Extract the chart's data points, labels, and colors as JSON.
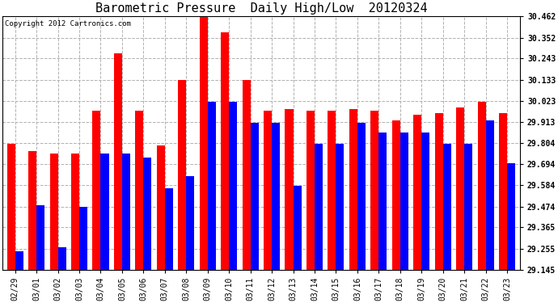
{
  "title": "Barometric Pressure  Daily High/Low  20120324",
  "copyright": "Copyright 2012 Cartronics.com",
  "dates": [
    "02/29",
    "03/01",
    "03/02",
    "03/03",
    "03/04",
    "03/05",
    "03/06",
    "03/07",
    "03/08",
    "03/09",
    "03/10",
    "03/11",
    "03/12",
    "03/13",
    "03/14",
    "03/15",
    "03/16",
    "03/17",
    "03/18",
    "03/19",
    "03/20",
    "03/21",
    "03/22",
    "03/23"
  ],
  "highs": [
    29.8,
    29.76,
    29.75,
    29.75,
    29.97,
    30.27,
    29.97,
    29.79,
    30.13,
    30.46,
    30.38,
    30.13,
    29.97,
    29.98,
    29.97,
    29.97,
    29.98,
    29.97,
    29.92,
    29.95,
    29.96,
    29.99,
    30.02,
    29.96
  ],
  "lows": [
    29.24,
    29.48,
    29.26,
    29.47,
    29.75,
    29.75,
    29.73,
    29.57,
    29.63,
    30.02,
    30.02,
    29.91,
    29.91,
    29.58,
    29.8,
    29.8,
    29.91,
    29.86,
    29.86,
    29.86,
    29.8,
    29.8,
    29.92,
    29.7
  ],
  "ymin": 29.145,
  "ymax": 30.462,
  "yticks": [
    29.145,
    29.255,
    29.365,
    29.474,
    29.584,
    29.694,
    29.804,
    29.913,
    30.023,
    30.133,
    30.243,
    30.352,
    30.462
  ],
  "bar_width": 0.38,
  "high_color": "#ff0000",
  "low_color": "#0000ff",
  "bg_color": "#ffffff",
  "grid_color": "#b0b0b0",
  "title_fontsize": 11,
  "tick_fontsize": 7,
  "copyright_fontsize": 6.5
}
